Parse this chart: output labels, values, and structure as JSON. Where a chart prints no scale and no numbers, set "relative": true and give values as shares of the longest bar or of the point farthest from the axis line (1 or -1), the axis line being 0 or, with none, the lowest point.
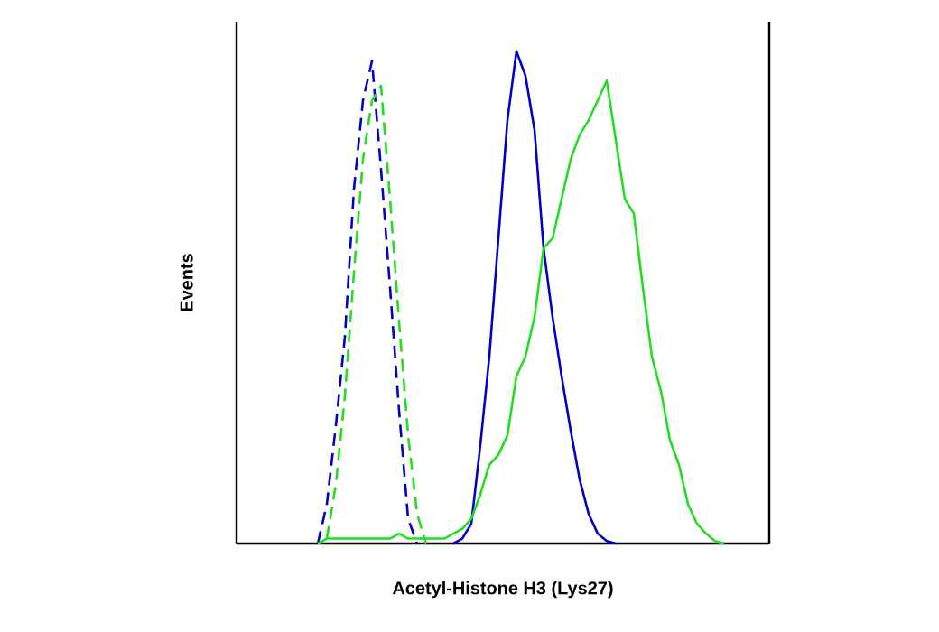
{
  "chart_data": {
    "type": "line",
    "relative": true,
    "xlabel": "Acetyl-Histone H3 (Lys27)",
    "ylabel": "Events",
    "categories": [
      null,
      null,
      null,
      null,
      null,
      null,
      null,
      null,
      null,
      null,
      null,
      null,
      null,
      null,
      null,
      null,
      null,
      null,
      null,
      null,
      null,
      null,
      null,
      null,
      null,
      null,
      null,
      null,
      null,
      null,
      null,
      null,
      null,
      null,
      null,
      null,
      null,
      null,
      null,
      null,
      null,
      null,
      null,
      null,
      null,
      null,
      null,
      null,
      null,
      null,
      null,
      null,
      null,
      null,
      null,
      null,
      null,
      null,
      null,
      null
    ],
    "series": [
      {
        "color": "#0000cc",
        "line_style": "dashed",
        "values": [
          null,
          null,
          null,
          null,
          null,
          null,
          null,
          null,
          null,
          0,
          0.08,
          0.24,
          0.42,
          0.72,
          0.9,
          0.98,
          0.76,
          0.52,
          0.27,
          0.05,
          0,
          null,
          null,
          null,
          null,
          null,
          null,
          null,
          null,
          null,
          null,
          null,
          null,
          null,
          null,
          null,
          null,
          null,
          null,
          null,
          null,
          null,
          null,
          null,
          null,
          null,
          null,
          null,
          null,
          null,
          null,
          null,
          null,
          null,
          null,
          null,
          null,
          null,
          null,
          null
        ]
      },
      {
        "color": "#22dd22",
        "line_style": "dashed",
        "values": [
          null,
          null,
          null,
          null,
          null,
          null,
          null,
          null,
          null,
          null,
          0.01,
          0.12,
          0.3,
          0.55,
          0.78,
          0.9,
          0.93,
          0.7,
          0.45,
          0.22,
          0.06,
          0,
          null,
          null,
          null,
          null,
          null,
          null,
          null,
          null,
          null,
          null,
          null,
          null,
          null,
          null,
          null,
          null,
          null,
          null,
          null,
          null,
          null,
          null,
          null,
          null,
          null,
          null,
          null,
          null,
          null,
          null,
          null,
          null,
          null,
          null,
          null,
          null,
          null,
          null
        ]
      },
      {
        "color": "#0000cc",
        "line_style": "solid",
        "values": [
          null,
          null,
          null,
          null,
          null,
          null,
          null,
          null,
          null,
          null,
          null,
          null,
          null,
          null,
          null,
          null,
          null,
          null,
          null,
          null,
          null,
          null,
          null,
          null,
          0,
          0.01,
          0.04,
          0.2,
          0.38,
          0.62,
          0.86,
          1,
          0.95,
          0.84,
          0.6,
          0.46,
          0.34,
          0.23,
          0.13,
          0.06,
          0.02,
          0.005,
          0,
          null,
          null,
          null,
          null,
          null,
          null,
          null,
          null,
          null,
          null,
          null,
          null,
          null,
          null,
          null,
          null,
          null
        ]
      },
      {
        "color": "#22dd22",
        "line_style": "solid",
        "values": [
          null,
          null,
          null,
          null,
          null,
          null,
          null,
          null,
          null,
          0,
          0.01,
          0.01,
          0.01,
          0.01,
          0.01,
          0.01,
          0.01,
          0.01,
          0.02,
          0.01,
          0.01,
          0.01,
          0.01,
          0.01,
          0.02,
          0.03,
          0.05,
          0.1,
          0.16,
          0.18,
          0.22,
          0.34,
          0.38,
          0.46,
          0.6,
          0.62,
          0.7,
          0.78,
          0.83,
          0.86,
          0.9,
          0.94,
          0.82,
          0.7,
          0.67,
          0.52,
          0.38,
          0.31,
          0.21,
          0.16,
          0.08,
          0.04,
          0.02,
          0.005,
          0,
          null,
          null,
          null,
          null,
          null
        ]
      }
    ]
  }
}
